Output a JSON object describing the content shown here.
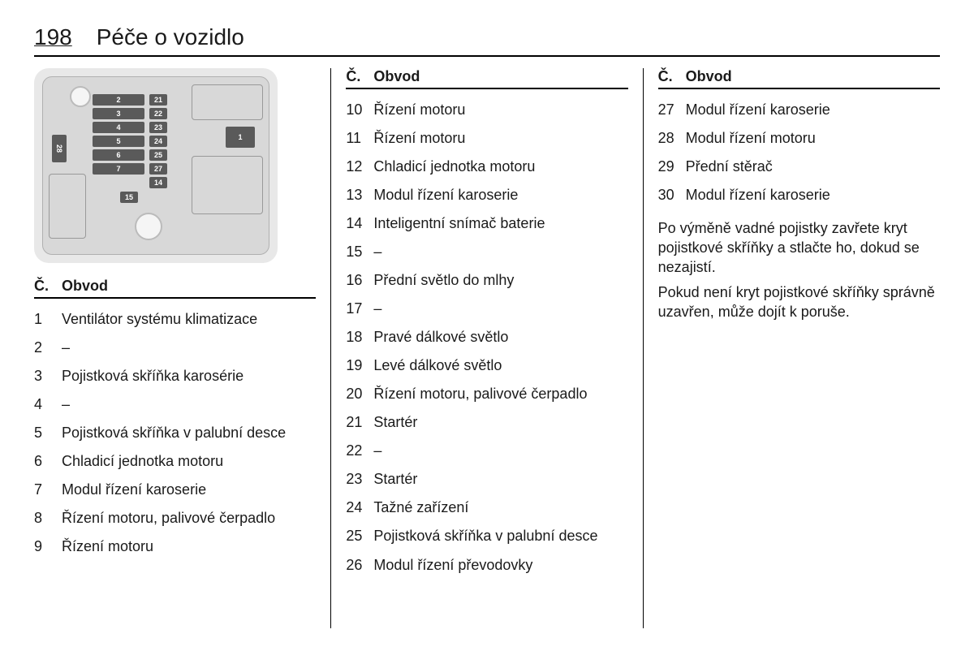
{
  "header": {
    "page_number": "198",
    "title": "Péče o vozidlo"
  },
  "table_headers": {
    "num": "Č.",
    "circuit": "Obvod"
  },
  "fuse_diagram": {
    "left_stack_labels": [
      "2",
      "3",
      "4",
      "5",
      "6",
      "7"
    ],
    "right_stack_labels": [
      "21",
      "22",
      "23",
      "24",
      "25",
      "27",
      "14"
    ],
    "bottom_label": "15",
    "big_right_label": "1",
    "side_label": "28",
    "colors": {
      "bg": "#e8e8e8",
      "inner": "#d8d8d8",
      "block": "#5a5a5a",
      "block_text": "#ffffff"
    }
  },
  "col1": {
    "rows": [
      {
        "n": "1",
        "label": "Ventilátor systému klimatizace"
      },
      {
        "n": "2",
        "label": "–"
      },
      {
        "n": "3",
        "label": "Pojistková skříňka karosérie"
      },
      {
        "n": "4",
        "label": "–"
      },
      {
        "n": "5",
        "label": "Pojistková skříňka v palubní desce"
      },
      {
        "n": "6",
        "label": "Chladicí jednotka motoru"
      },
      {
        "n": "7",
        "label": "Modul řízení karoserie"
      },
      {
        "n": "8",
        "label": "Řízení motoru, palivové čerpadlo"
      },
      {
        "n": "9",
        "label": "Řízení motoru"
      }
    ]
  },
  "col2": {
    "rows": [
      {
        "n": "10",
        "label": "Řízení motoru"
      },
      {
        "n": "11",
        "label": "Řízení motoru"
      },
      {
        "n": "12",
        "label": "Chladicí jednotka motoru"
      },
      {
        "n": "13",
        "label": "Modul řízení karoserie"
      },
      {
        "n": "14",
        "label": "Inteligentní snímač baterie"
      },
      {
        "n": "15",
        "label": "–"
      },
      {
        "n": "16",
        "label": "Přední světlo do mlhy"
      },
      {
        "n": "17",
        "label": "–"
      },
      {
        "n": "18",
        "label": "Pravé dálkové světlo"
      },
      {
        "n": "19",
        "label": "Levé dálkové světlo"
      },
      {
        "n": "20",
        "label": "Řízení motoru, palivové čerpadlo"
      },
      {
        "n": "21",
        "label": "Startér"
      },
      {
        "n": "22",
        "label": "–"
      },
      {
        "n": "23",
        "label": "Startér"
      },
      {
        "n": "24",
        "label": "Tažné zařízení"
      },
      {
        "n": "25",
        "label": "Pojistková skříňka v palubní desce"
      },
      {
        "n": "26",
        "label": "Modul řízení převodovky"
      }
    ]
  },
  "col3": {
    "rows": [
      {
        "n": "27",
        "label": "Modul řízení karoserie"
      },
      {
        "n": "28",
        "label": "Modul řízení motoru"
      },
      {
        "n": "29",
        "label": "Přední stěrač"
      },
      {
        "n": "30",
        "label": "Modul řízení karoserie"
      }
    ],
    "paragraphs": [
      "Po výměně vadné pojistky zavřete kryt pojistkové skříňky a stlačte ho, dokud se nezajistí.",
      "Pokud není kryt pojistkové skříňky správně uzavřen, může dojít k poruše."
    ]
  }
}
